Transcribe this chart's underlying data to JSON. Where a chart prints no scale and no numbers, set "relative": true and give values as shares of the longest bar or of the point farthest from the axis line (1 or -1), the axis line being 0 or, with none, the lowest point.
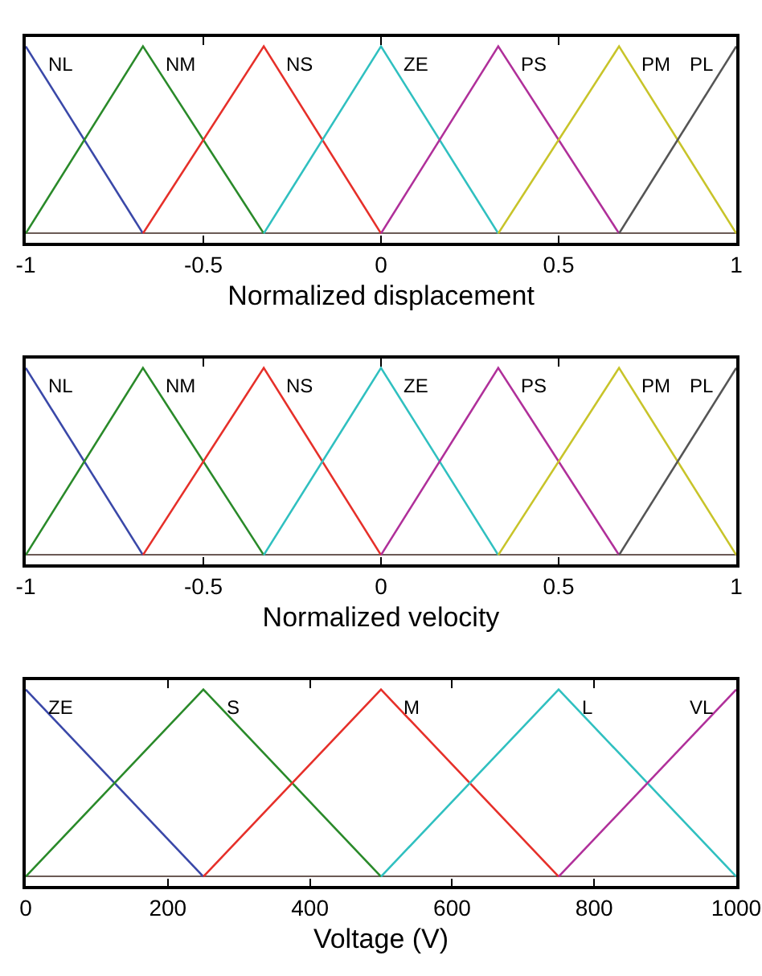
{
  "chart_data": [
    {
      "type": "line",
      "xlabel": "Normalized displacement",
      "relative": true,
      "tick_labels": "x",
      "x": [
        -1,
        -0.67,
        -0.33,
        0,
        0.33,
        0.67,
        1
      ],
      "xlim": [
        -1,
        1
      ],
      "xticks": [
        -1,
        -0.5,
        0,
        0.5,
        1
      ],
      "series": [
        {
          "name": "NL",
          "color": "#3a48a8",
          "values": [
            1,
            0,
            null,
            null,
            null,
            null,
            null
          ]
        },
        {
          "name": "NM",
          "color": "#2a8a2a",
          "values": [
            0,
            1,
            0,
            null,
            null,
            null,
            null
          ]
        },
        {
          "name": "NS",
          "color": "#e6302a",
          "values": [
            null,
            0,
            1,
            0,
            null,
            null,
            null
          ]
        },
        {
          "name": "ZE",
          "color": "#30c0c0",
          "values": [
            null,
            null,
            0,
            1,
            0,
            null,
            null
          ]
        },
        {
          "name": "PS",
          "color": "#b0309a",
          "values": [
            null,
            null,
            null,
            0,
            1,
            0,
            null
          ]
        },
        {
          "name": "PM",
          "color": "#c8c42a",
          "values": [
            null,
            null,
            null,
            null,
            0,
            1,
            0
          ]
        },
        {
          "name": "PL",
          "color": "#555555",
          "values": [
            null,
            null,
            null,
            null,
            null,
            0,
            1
          ]
        }
      ]
    },
    {
      "type": "line",
      "xlabel": "Normalized velocity",
      "relative": true,
      "tick_labels": "x",
      "x": [
        -1,
        -0.67,
        -0.33,
        0,
        0.33,
        0.67,
        1
      ],
      "xlim": [
        -1,
        1
      ],
      "xticks": [
        -1,
        -0.5,
        0,
        0.5,
        1
      ],
      "series": [
        {
          "name": "NL",
          "color": "#3a48a8",
          "values": [
            1,
            0,
            null,
            null,
            null,
            null,
            null
          ]
        },
        {
          "name": "NM",
          "color": "#2a8a2a",
          "values": [
            0,
            1,
            0,
            null,
            null,
            null,
            null
          ]
        },
        {
          "name": "NS",
          "color": "#e6302a",
          "values": [
            null,
            0,
            1,
            0,
            null,
            null,
            null
          ]
        },
        {
          "name": "ZE",
          "color": "#30c0c0",
          "values": [
            null,
            null,
            0,
            1,
            0,
            null,
            null
          ]
        },
        {
          "name": "PS",
          "color": "#b0309a",
          "values": [
            null,
            null,
            null,
            0,
            1,
            0,
            null
          ]
        },
        {
          "name": "PM",
          "color": "#c8c42a",
          "values": [
            null,
            null,
            null,
            null,
            0,
            1,
            0
          ]
        },
        {
          "name": "PL",
          "color": "#555555",
          "values": [
            null,
            null,
            null,
            null,
            null,
            0,
            1
          ]
        }
      ]
    },
    {
      "type": "line",
      "xlabel": "Voltage (V)",
      "relative": true,
      "tick_labels": "x",
      "x": [
        0,
        250,
        500,
        750,
        1000
      ],
      "xlim": [
        0,
        1000
      ],
      "xticks": [
        0,
        200,
        400,
        600,
        800,
        1000
      ],
      "series": [
        {
          "name": "ZE",
          "color": "#3a48a8",
          "values": [
            1,
            0,
            null,
            null,
            null
          ]
        },
        {
          "name": "S",
          "color": "#2a8a2a",
          "values": [
            0,
            1,
            0,
            null,
            null
          ]
        },
        {
          "name": "M",
          "color": "#e6302a",
          "values": [
            null,
            0,
            1,
            0,
            null
          ]
        },
        {
          "name": "L",
          "color": "#30c0c0",
          "values": [
            null,
            null,
            0,
            1,
            0
          ]
        },
        {
          "name": "VL",
          "color": "#b0309a",
          "values": [
            null,
            null,
            null,
            0,
            1
          ]
        }
      ]
    }
  ]
}
